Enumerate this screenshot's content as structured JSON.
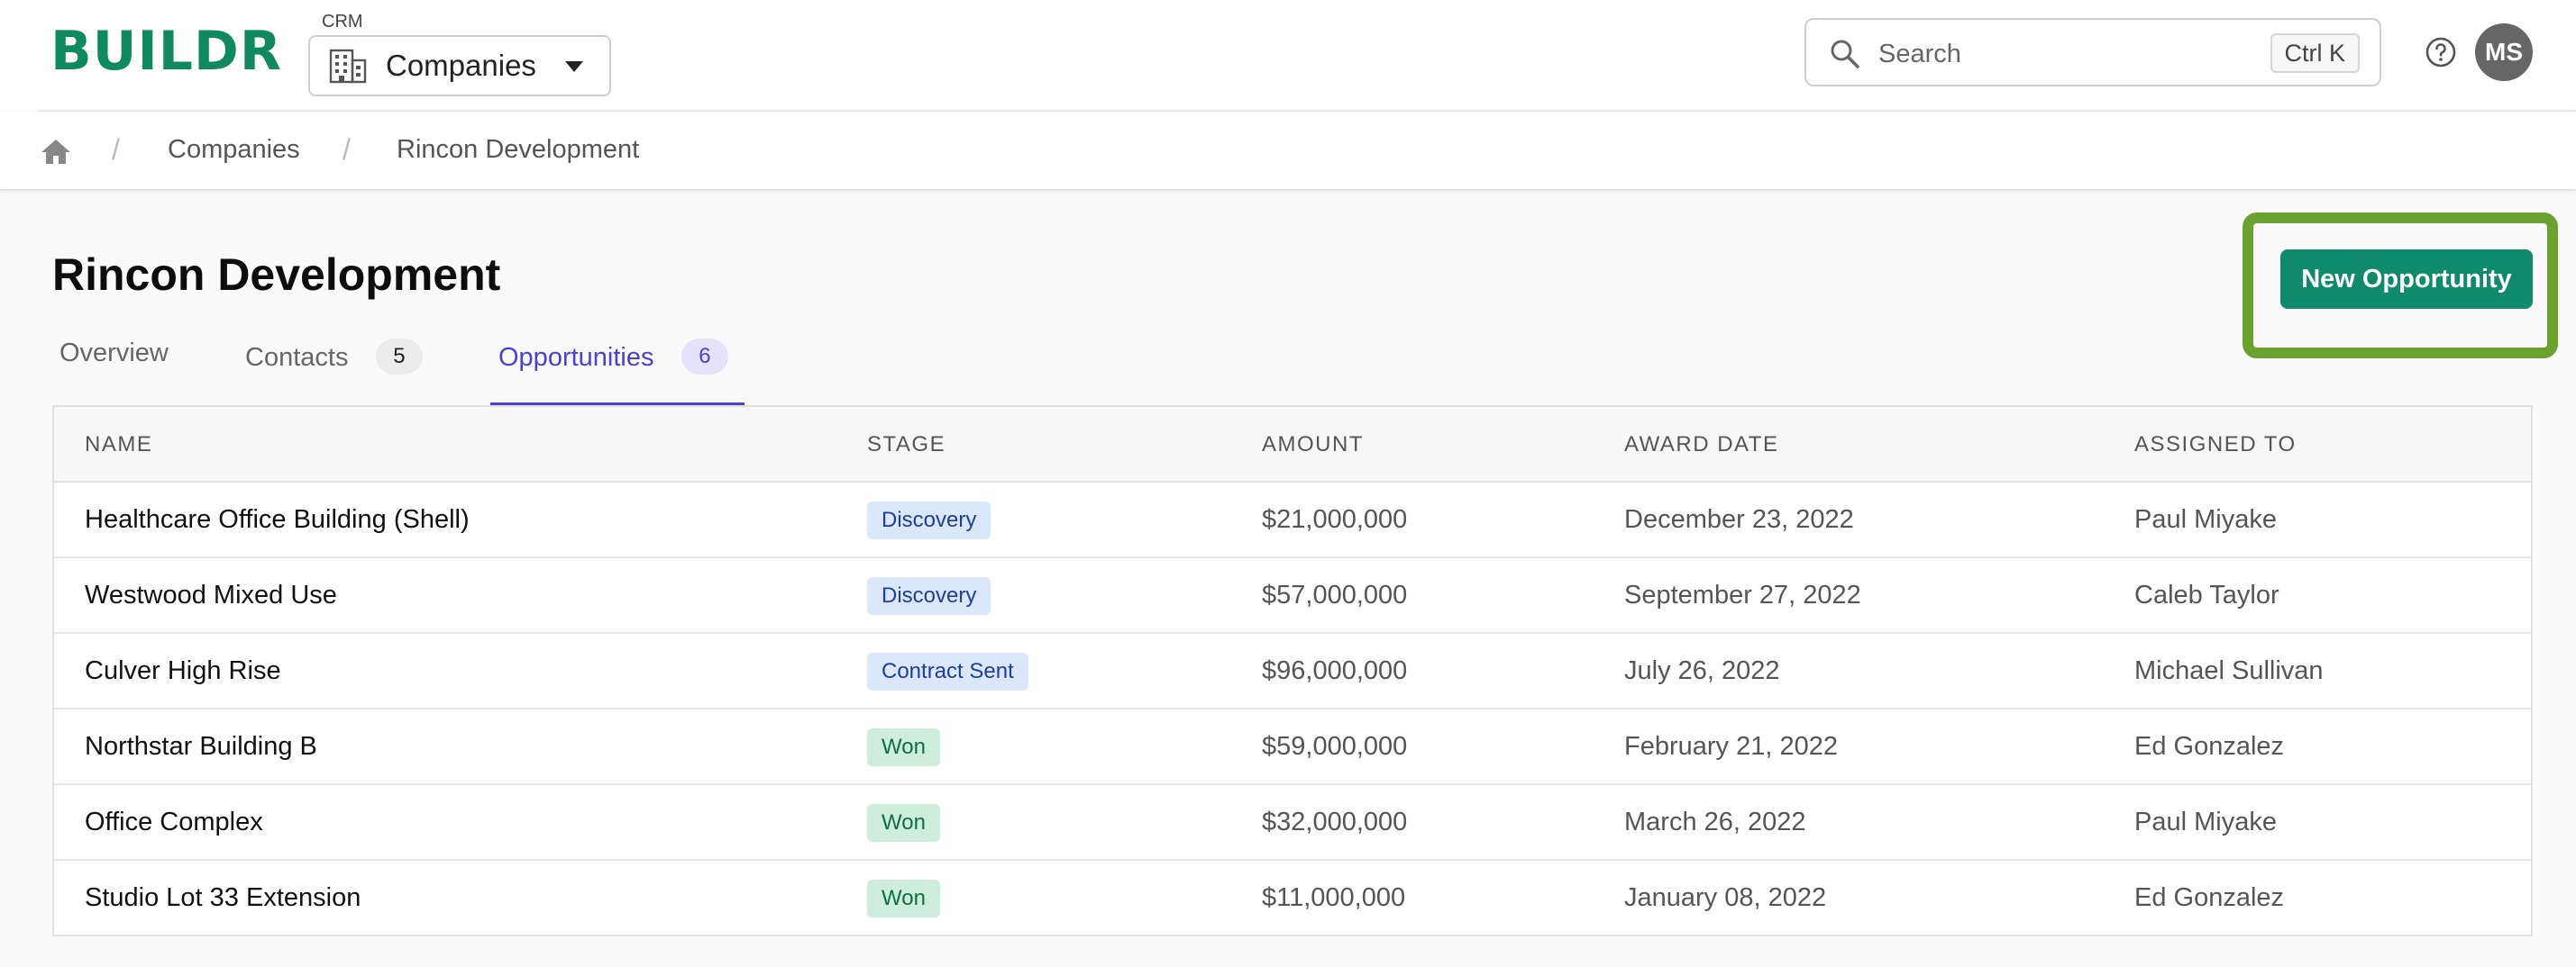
{
  "header": {
    "logo": "BUILDR",
    "crm_label": "CRM",
    "crm_selected": "Companies",
    "search_placeholder": "Search",
    "search_shortcut": "Ctrl K",
    "avatar_initials": "MS"
  },
  "breadcrumb": {
    "items": [
      "Companies",
      "Rincon Development"
    ]
  },
  "page": {
    "title": "Rincon Development",
    "new_button_label": "New Opportunity",
    "highlight_color": "#6aa12f",
    "tabs": [
      {
        "label": "Overview",
        "count": null
      },
      {
        "label": "Contacts",
        "count": "5"
      },
      {
        "label": "Opportunities",
        "count": "6",
        "active": true
      }
    ]
  },
  "table": {
    "columns": [
      "NAME",
      "STAGE",
      "AMOUNT",
      "AWARD DATE",
      "ASSIGNED TO"
    ],
    "rows": [
      {
        "name": "Healthcare Office Building (Shell)",
        "stage": "Discovery",
        "amount": "$21,000,000",
        "award_date": "December 23, 2022",
        "assigned_to": "Paul Miyake"
      },
      {
        "name": "Westwood Mixed Use",
        "stage": "Discovery",
        "amount": "$57,000,000",
        "award_date": "September 27, 2022",
        "assigned_to": "Caleb Taylor"
      },
      {
        "name": "Culver High Rise",
        "stage": "Contract Sent",
        "amount": "$96,000,000",
        "award_date": "July 26, 2022",
        "assigned_to": "Michael Sullivan"
      },
      {
        "name": "Northstar Building B",
        "stage": "Won",
        "amount": "$59,000,000",
        "award_date": "February 21, 2022",
        "assigned_to": "Ed Gonzalez"
      },
      {
        "name": "Office Complex",
        "stage": "Won",
        "amount": "$32,000,000",
        "award_date": "March 26, 2022",
        "assigned_to": "Paul Miyake"
      },
      {
        "name": "Studio Lot 33 Extension",
        "stage": "Won",
        "amount": "$11,000,000",
        "award_date": "January 08, 2022",
        "assigned_to": "Ed Gonzalez"
      }
    ]
  },
  "colors": {
    "brand": "#0f8a5f",
    "primary_button": "#0f8a6a",
    "active_tab": "#4a3fd6"
  },
  "icons": {
    "crm_select": "building-icon",
    "search": "search-icon",
    "help": "help-icon",
    "home": "home-icon",
    "dropdown": "chevron-down-icon"
  }
}
